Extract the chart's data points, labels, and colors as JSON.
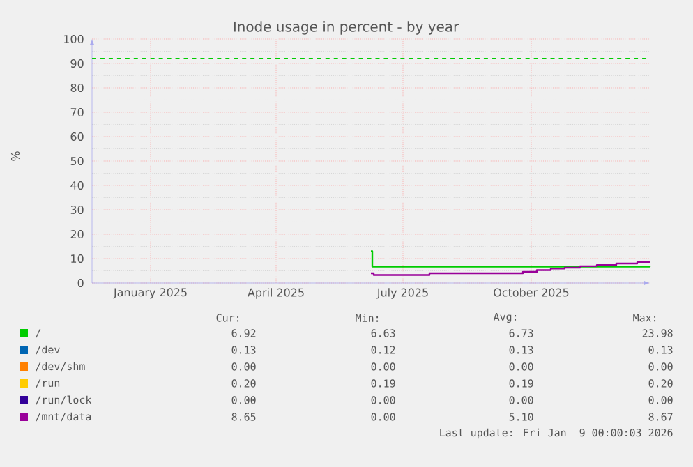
{
  "chart_data": {
    "type": "step",
    "title": "Inode usage in percent - by year",
    "ylabel": "%",
    "xlim": [
      "2024-11-20",
      "2025-12-25"
    ],
    "xticks": [
      {
        "value": "2025-01-01",
        "label": "January 2025"
      },
      {
        "value": "2025-04-01",
        "label": "April 2025"
      },
      {
        "value": "2025-07-01",
        "label": "July 2025"
      },
      {
        "value": "2025-10-01",
        "label": "October 2025"
      }
    ],
    "ylim": [
      0,
      100
    ],
    "yticks": [
      0,
      10,
      20,
      30,
      40,
      50,
      60,
      70,
      80,
      90,
      100
    ],
    "grid": true,
    "legend": "bottom",
    "series": [
      {
        "name": "/",
        "color": "#00cc00",
        "x": [
          "2025-06-08",
          "2025-06-09",
          "2025-12-25"
        ],
        "values": [
          13,
          6.7,
          6.9
        ]
      },
      {
        "name": "/dev",
        "color": "#0066b3"
      },
      {
        "name": "/dev/shm",
        "color": "#ff8000"
      },
      {
        "name": "/run",
        "color": "#ffcc00"
      },
      {
        "name": "/run/lock",
        "color": "#330099"
      },
      {
        "name": "/mnt/data",
        "color": "#990099",
        "x": [
          "2025-06-08",
          "2025-06-10",
          "2025-07-20",
          "2025-09-25",
          "2025-10-05",
          "2025-10-15",
          "2025-10-25",
          "2025-11-05",
          "2025-11-17",
          "2025-12-01",
          "2025-12-16",
          "2025-12-25"
        ],
        "values": [
          4.0,
          3.3,
          4.0,
          4.6,
          5.3,
          5.9,
          6.3,
          6.9,
          7.4,
          8.0,
          8.6,
          8.6
        ]
      }
    ],
    "ref_lines": [
      {
        "axis": "y",
        "value": 92,
        "color": "#00cc00",
        "line_style": "dashed"
      }
    ],
    "annotations": [
      "Cur:",
      "Min:",
      "Avg:",
      "Max:",
      "6.92",
      "6.63",
      "6.73",
      "23.98",
      "0.13",
      "0.12",
      "0.13",
      "0.13",
      "0.00",
      "0.00",
      "0.00",
      "0.00",
      "0.20",
      "0.19",
      "0.19",
      "0.20",
      "0.00",
      "0.00",
      "0.00",
      "0.00",
      "8.65",
      "0.00",
      "5.10",
      "8.67",
      "Last update: Fri Jan  9 00:00:03 2026"
    ]
  }
}
